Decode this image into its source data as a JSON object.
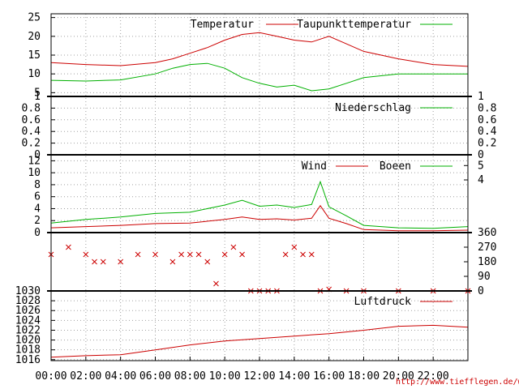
{
  "chart_data": [
    {
      "type": "line",
      "panel": "temperature",
      "series": [
        {
          "name": "Temperatur",
          "color": "#cc0000",
          "x": [
            "00:00",
            "02:00",
            "04:00",
            "06:00",
            "07:00",
            "08:00",
            "09:00",
            "10:00",
            "11:00",
            "12:00",
            "13:00",
            "14:00",
            "15:00",
            "16:00",
            "17:00",
            "18:00",
            "20:00",
            "22:00",
            "24:00"
          ],
          "values": [
            13,
            12.5,
            12.2,
            13,
            14,
            15.5,
            17,
            19,
            20.5,
            21,
            20,
            19,
            18.5,
            20,
            18,
            16,
            14,
            12.5,
            12
          ]
        },
        {
          "name": "Taupunkttemperatur",
          "color": "#00b000",
          "x": [
            "00:00",
            "02:00",
            "04:00",
            "06:00",
            "07:00",
            "08:00",
            "09:00",
            "10:00",
            "11:00",
            "12:00",
            "13:00",
            "14:00",
            "15:00",
            "16:00",
            "17:00",
            "18:00",
            "20:00",
            "22:00",
            "24:00"
          ],
          "values": [
            8.3,
            8.1,
            8.4,
            10,
            11.5,
            12.5,
            12.8,
            11.5,
            9,
            7.5,
            6.5,
            7,
            5.5,
            6,
            7.5,
            9,
            10,
            10,
            10
          ]
        }
      ],
      "y_ticks": [
        "5",
        "10",
        "15",
        "20",
        "25"
      ],
      "ylim": [
        4,
        26
      ]
    },
    {
      "type": "line",
      "panel": "precipitation",
      "series": [
        {
          "name": "Niederschlag",
          "color": "#00b000",
          "x": [
            "00:00",
            "24:00"
          ],
          "values": [
            0,
            0
          ]
        }
      ],
      "y_ticks": [
        "0",
        "0.2",
        "0.4",
        "0.6",
        "0.8",
        "1"
      ],
      "ylim": [
        0,
        1
      ]
    },
    {
      "type": "line",
      "panel": "wind",
      "series": [
        {
          "name": "Wind",
          "color": "#cc0000",
          "x": [
            "00:00",
            "02:00",
            "04:00",
            "06:00",
            "08:00",
            "10:00",
            "11:00",
            "12:00",
            "13:00",
            "14:00",
            "15:00",
            "15:30",
            "16:00",
            "17:00",
            "18:00",
            "20:00",
            "22:00",
            "24:00"
          ],
          "values": [
            0.8,
            1,
            1.2,
            1.5,
            1.6,
            2.2,
            2.6,
            2.2,
            2.3,
            2.1,
            2.4,
            4.5,
            2.4,
            1.5,
            0.5,
            0.3,
            0.3,
            0.4
          ]
        },
        {
          "name": "Boeen",
          "color": "#00b000",
          "x": [
            "00:00",
            "02:00",
            "04:00",
            "06:00",
            "08:00",
            "10:00",
            "11:00",
            "12:00",
            "13:00",
            "14:00",
            "15:00",
            "15:30",
            "16:00",
            "17:00",
            "18:00",
            "20:00",
            "22:00",
            "24:00"
          ],
          "values": [
            1.6,
            2.2,
            2.6,
            3.2,
            3.4,
            4.6,
            5.4,
            4.4,
            4.6,
            4.2,
            4.7,
            8.5,
            4.3,
            2.8,
            1.2,
            0.8,
            0.7,
            1
          ]
        }
      ],
      "y_ticks": [
        "0",
        "2",
        "4",
        "6",
        "8",
        "10",
        "12"
      ],
      "y2_ticks": [
        "4",
        "5"
      ],
      "ylim": [
        0,
        13
      ]
    },
    {
      "type": "scatter",
      "panel": "wind-direction",
      "series": [
        {
          "color": "#cc0000",
          "marker": "x",
          "x": [
            "00:00",
            "01:00",
            "02:00",
            "02:30",
            "03:00",
            "04:00",
            "05:00",
            "06:00",
            "07:00",
            "07:30",
            "08:00",
            "08:30",
            "09:00",
            "09:30",
            "10:00",
            "10:30",
            "11:00",
            "11:30",
            "12:00",
            "12:30",
            "13:00",
            "13:30",
            "14:00",
            "14:30",
            "15:00",
            "15:30",
            "16:00",
            "17:00",
            "18:00",
            "20:00",
            "22:00",
            "24:00"
          ],
          "values": [
            225,
            270,
            225,
            180,
            180,
            180,
            225,
            225,
            180,
            225,
            225,
            225,
            180,
            45,
            225,
            270,
            225,
            0,
            0,
            0,
            0,
            225,
            270,
            225,
            225,
            0,
            10,
            0,
            0,
            0,
            0,
            0
          ]
        }
      ],
      "y2_ticks": [
        "0",
        "90",
        "180",
        "270",
        "360"
      ],
      "ylim": [
        0,
        360
      ]
    },
    {
      "type": "line",
      "panel": "pressure",
      "series": [
        {
          "name": "Luftdruck",
          "color": "#cc0000",
          "x": [
            "00:00",
            "02:00",
            "04:00",
            "06:00",
            "08:00",
            "10:00",
            "12:00",
            "14:00",
            "16:00",
            "18:00",
            "20:00",
            "22:00",
            "24:00"
          ],
          "values": [
            1016.5,
            1016.8,
            1017,
            1018,
            1019,
            1019.8,
            1020.3,
            1020.8,
            1021.3,
            1022,
            1022.8,
            1023,
            1022.6
          ]
        }
      ],
      "y_ticks": [
        "1016",
        "1018",
        "1020",
        "1022",
        "1024",
        "1026",
        "1028",
        "1030"
      ],
      "ylim": [
        1015.8,
        1030
      ]
    }
  ],
  "x_axis": {
    "ticks": [
      "00:00",
      "02:00",
      "04:00",
      "06:00",
      "08:00",
      "10:00",
      "12:00",
      "14:00",
      "16:00",
      "18:00",
      "20:00",
      "22:00"
    ]
  },
  "source_url": "http://www.tiefflegen.de/wetter/"
}
